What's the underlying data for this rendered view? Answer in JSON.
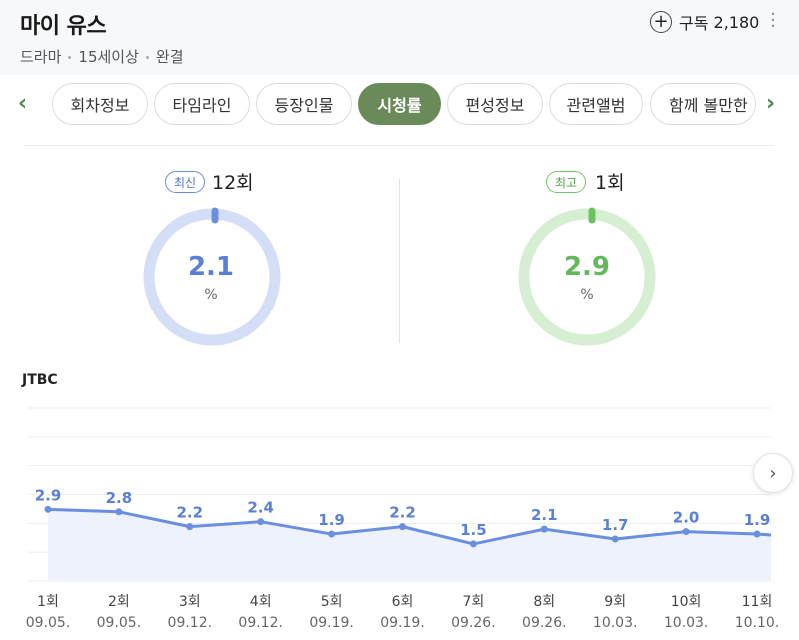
{
  "header": {
    "title": "마이 유스",
    "meta": [
      "드라마",
      "15세이상",
      "완결"
    ],
    "subscribe_label": "구독",
    "subscribe_count": "2,180"
  },
  "tabs": [
    "회차정보",
    "타임라인",
    "등장인물",
    "시청률",
    "편성정보",
    "관련앨범",
    "함께 볼만한"
  ],
  "active_tab": "시청률",
  "summary": {
    "latest": {
      "badge": "최신",
      "episode": "12회",
      "value": "2.1",
      "unit": "%",
      "color": "#6a8fe0",
      "ring": "#d4def7"
    },
    "best": {
      "badge": "최고",
      "episode": "1회",
      "value": "2.9",
      "unit": "%",
      "color": "#6dc163",
      "ring": "#d6efd2"
    }
  },
  "network": "JTBC",
  "chart_data": {
    "type": "area",
    "title": "JTBC",
    "categories": [
      "1회",
      "2회",
      "3회",
      "4회",
      "5회",
      "6회",
      "7회",
      "8회",
      "9회",
      "10회",
      "11회"
    ],
    "dates": [
      "09.05.",
      "09.05.",
      "09.12.",
      "09.12.",
      "09.19.",
      "09.19.",
      "09.26.",
      "09.26.",
      "10.03.",
      "10.03.",
      "10.10."
    ],
    "values": [
      2.9,
      2.8,
      2.2,
      2.4,
      1.9,
      2.2,
      1.5,
      2.1,
      1.7,
      2.0,
      1.9
    ],
    "labels": [
      "2.9",
      "2.8",
      "2.2",
      "2.4",
      "1.9",
      "2.2",
      "1.5",
      "2.1",
      "1.7",
      "2.0",
      "1.9"
    ],
    "ylim": [
      0,
      7
    ],
    "grid": true,
    "line_color": "#6a8fe0",
    "fill_color": "#eef2fc"
  }
}
